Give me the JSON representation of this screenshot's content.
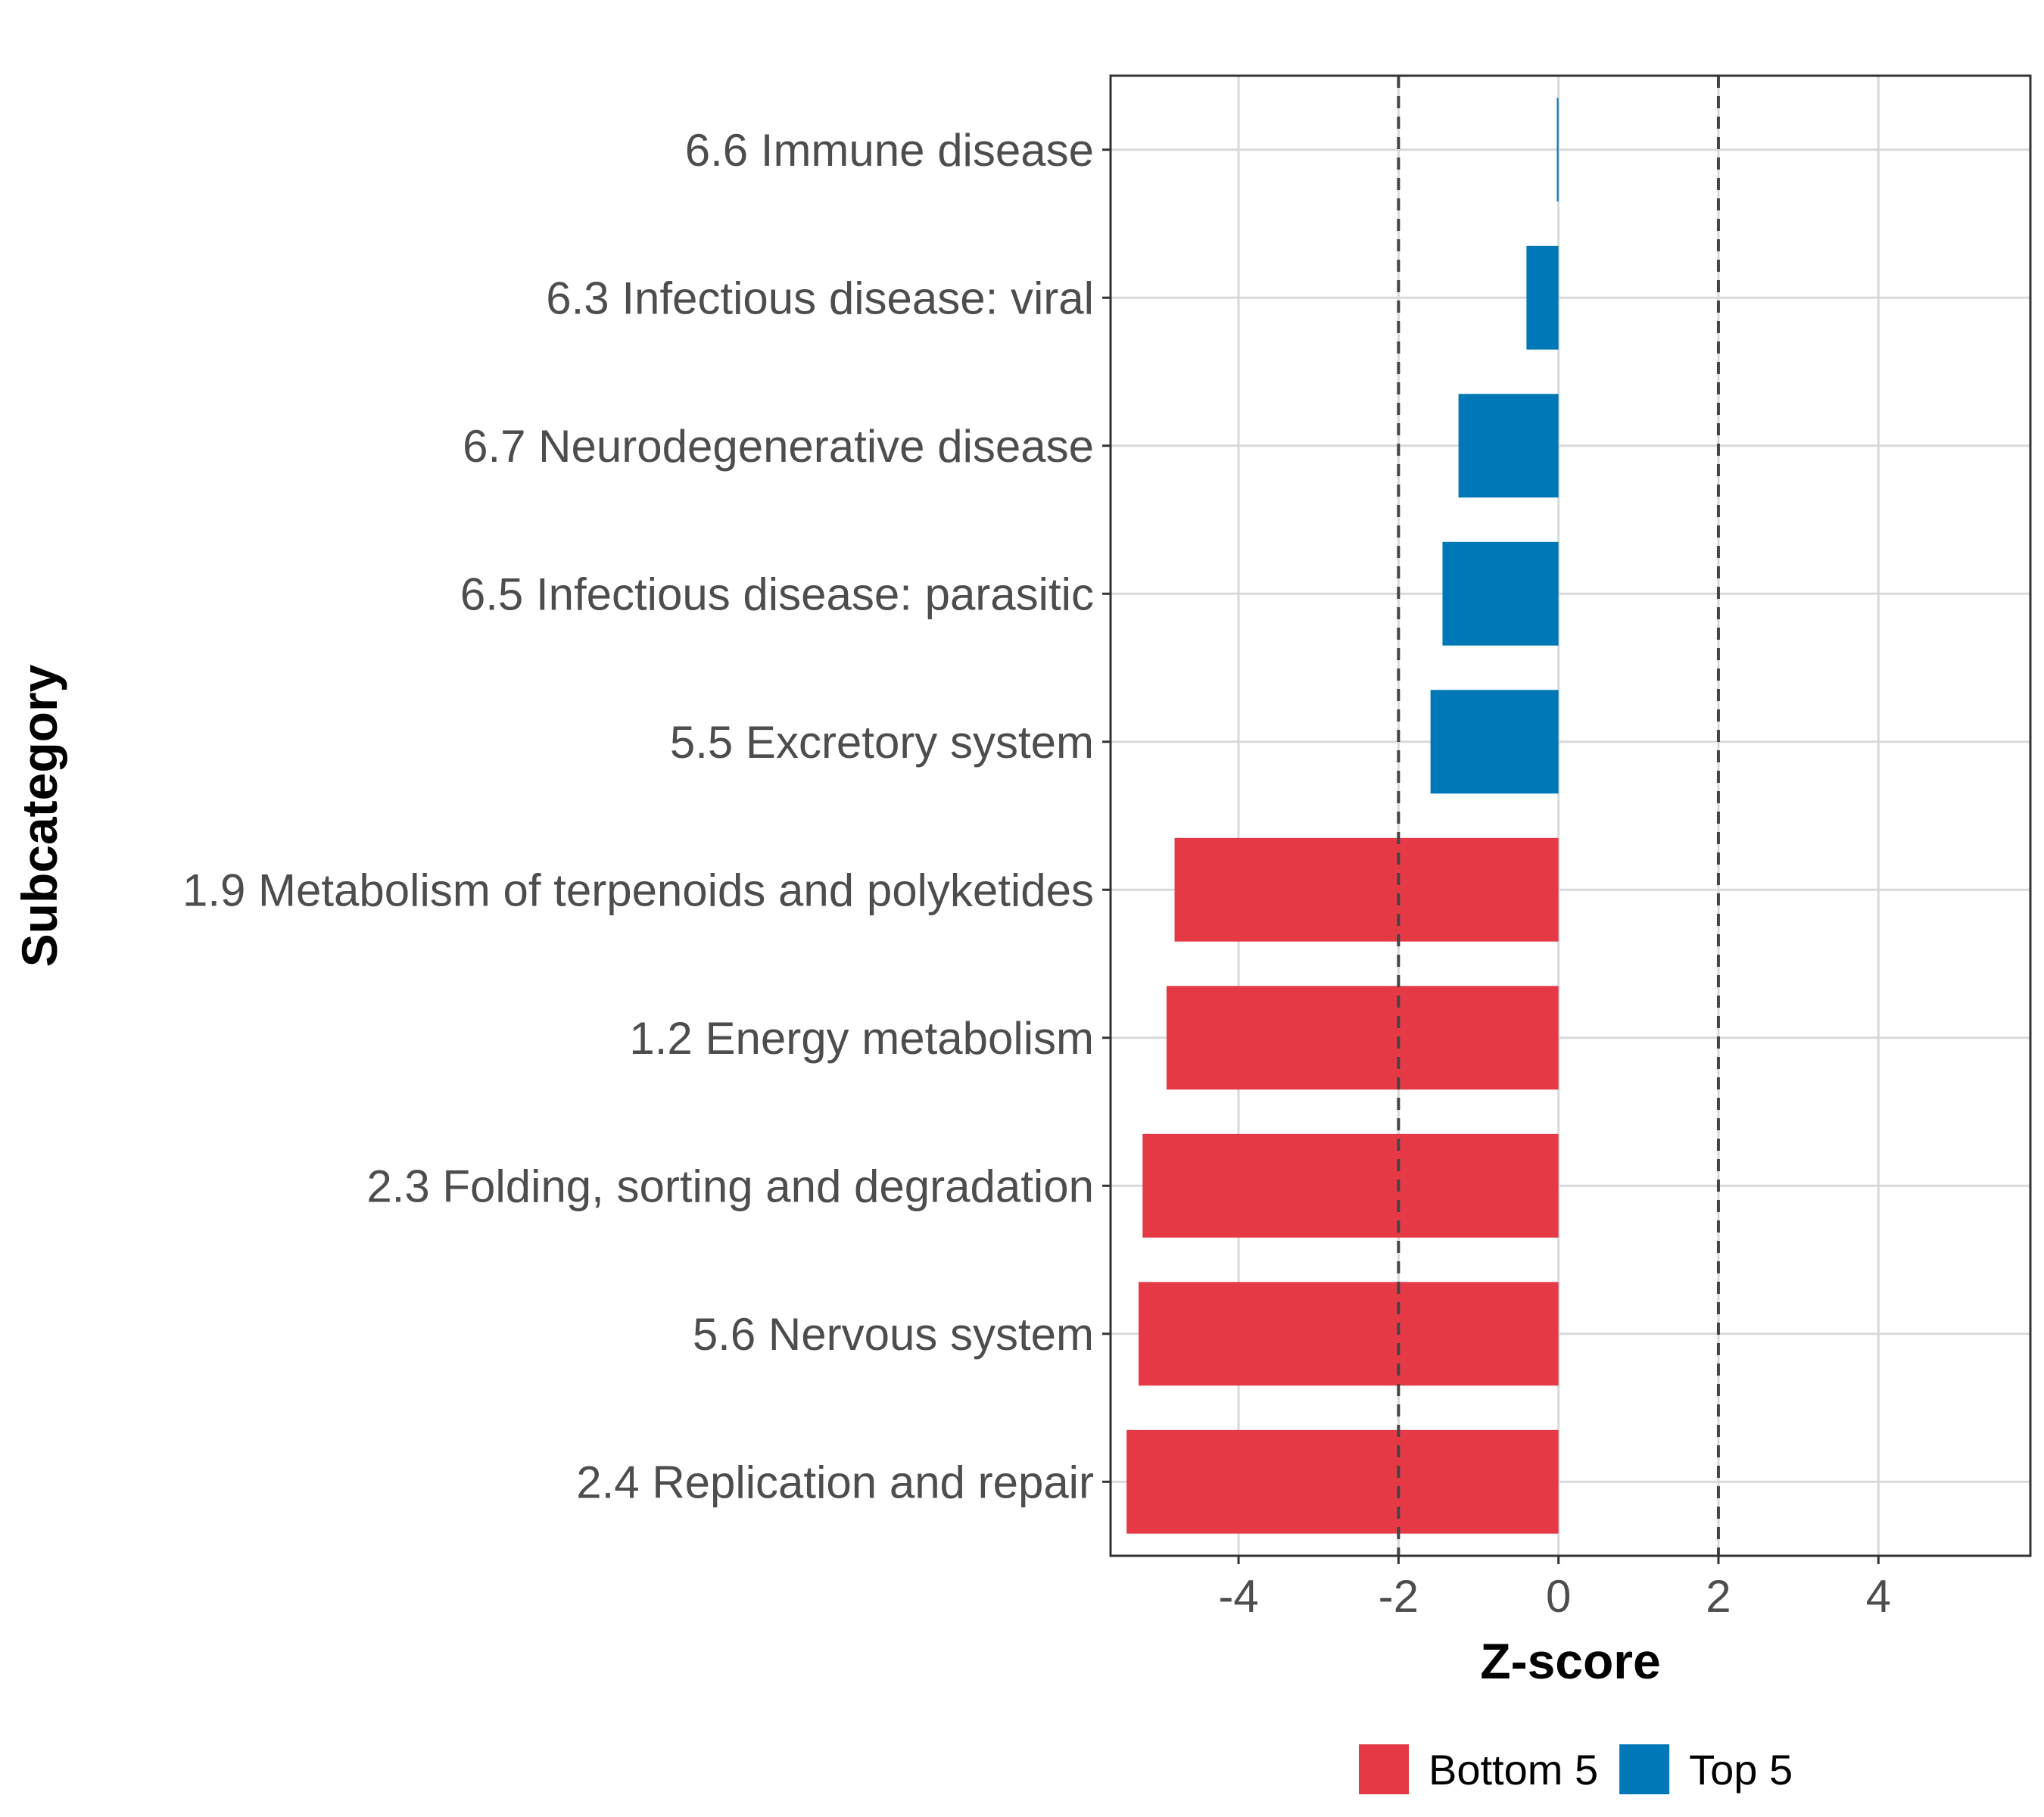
{
  "chart_data": {
    "type": "bar",
    "orientation": "horizontal",
    "title": "",
    "xlabel": "Z-score",
    "ylabel": "Subcategory",
    "xlim": [
      -5.6,
      5.9
    ],
    "xticks": [
      -4,
      -2,
      0,
      2,
      4
    ],
    "xtick_labels": [
      "-4",
      "-2",
      "0",
      "2",
      "4"
    ],
    "reference_lines": [
      -2,
      2
    ],
    "grid": true,
    "legend_position": "bottom",
    "categories": [
      "6.6 Immune disease",
      "6.3 Infectious disease: viral",
      "6.7 Neurodegenerative disease",
      "6.5 Infectious disease: parasitic",
      "5.5 Excretory system",
      "1.9 Metabolism of terpenoids and polyketides",
      "1.2 Energy metabolism",
      "2.3 Folding, sorting and degradation",
      "5.6 Nervous system",
      "2.4 Replication and repair"
    ],
    "values": [
      -0.02,
      -0.4,
      -1.25,
      -1.45,
      -1.6,
      -4.8,
      -4.9,
      -5.2,
      -5.25,
      -5.4
    ],
    "groups": [
      "Top 5",
      "Top 5",
      "Top 5",
      "Top 5",
      "Top 5",
      "Bottom 5",
      "Bottom 5",
      "Bottom 5",
      "Bottom 5",
      "Bottom 5"
    ],
    "legend": [
      {
        "name": "Bottom 5",
        "color": "#e63946"
      },
      {
        "name": "Top 5",
        "color": "#0077b6"
      }
    ]
  }
}
